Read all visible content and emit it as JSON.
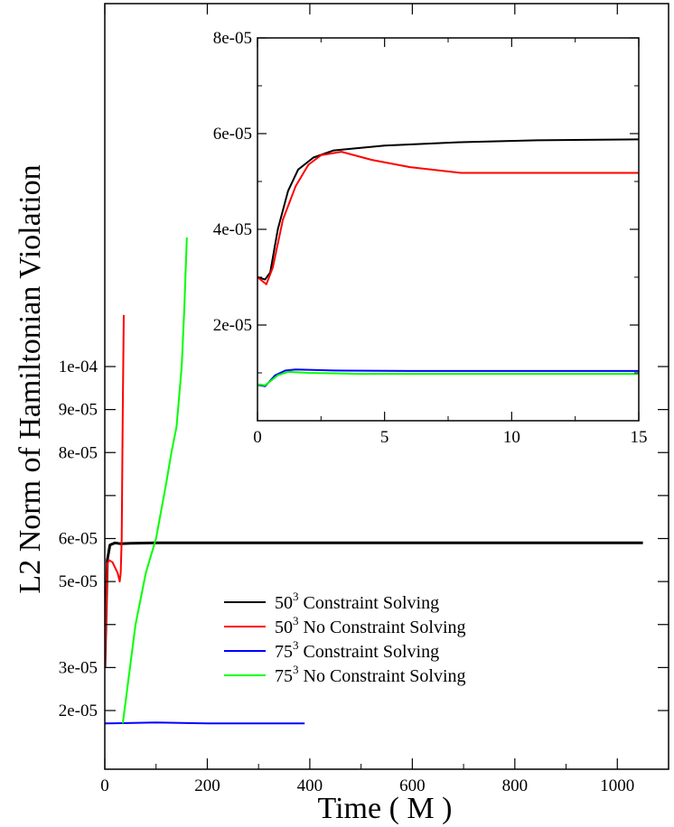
{
  "chart_data": [
    {
      "type": "line",
      "xlabel": "Time ( M )",
      "ylabel": "L2 Norm of Hamiltonian Violation",
      "xlim": [
        0,
        1100
      ],
      "ylim": [
        1.5e-05,
        0.00013
      ],
      "xticks": [
        0,
        200,
        400,
        600,
        800,
        1000
      ],
      "xtick_labels": [
        "0",
        "200",
        "400",
        "600",
        "800",
        "1000"
      ],
      "yticks": [
        2e-05,
        3e-05,
        5e-05,
        6e-05,
        8e-05,
        9e-05,
        0.0001
      ],
      "ytick_labels": [
        "2e-05",
        "3e-05",
        "5e-05",
        "6e-05",
        "8e-05",
        "9e-05",
        "1e-04"
      ],
      "legend_position": "lower-center",
      "series": [
        {
          "name": "50^3 Constraint Solving",
          "label_base": "50",
          "label_exp": "3",
          "label_rest": " Constraint Solving",
          "color": "#000000",
          "points": [
            [
              0,
              3e-05
            ],
            [
              5,
              5.5e-05
            ],
            [
              10,
              5.85e-05
            ],
            [
              20,
              5.9e-05
            ],
            [
              30,
              5.88e-05
            ],
            [
              50,
              5.89e-05
            ],
            [
              100,
              5.9e-05
            ],
            [
              500,
              5.9e-05
            ],
            [
              1000,
              5.9e-05
            ],
            [
              1050,
              5.9e-05
            ]
          ]
        },
        {
          "name": "50^3 No Constraint Solving",
          "label_base": "50",
          "label_exp": "3",
          "label_rest": " No Constraint Solving",
          "color": "#ff0000",
          "points": [
            [
              0,
              3e-05
            ],
            [
              5,
              5.4e-05
            ],
            [
              8,
              5.5e-05
            ],
            [
              15,
              5.45e-05
            ],
            [
              25,
              5.2e-05
            ],
            [
              29,
              5e-05
            ],
            [
              31,
              5.2e-05
            ],
            [
              33,
              6e-05
            ],
            [
              35,
              9e-05
            ],
            [
              37,
              0.000112
            ]
          ]
        },
        {
          "name": "75^3 Constraint Solving",
          "label_base": "75",
          "label_exp": "3",
          "label_rest": " Constraint Solving",
          "color": "#0000ff",
          "points": [
            [
              0,
              1.7e-05
            ],
            [
              100,
              1.72e-05
            ],
            [
              200,
              1.7e-05
            ],
            [
              300,
              1.7e-05
            ],
            [
              390,
              1.7e-05
            ]
          ]
        },
        {
          "name": "75^3 No Constraint Solving",
          "label_base": "75",
          "label_exp": "3",
          "label_rest": " No Constraint Solving",
          "color": "#00ff00",
          "points": [
            [
              35,
              1.7e-05
            ],
            [
              60,
              4e-05
            ],
            [
              80,
              5.2e-05
            ],
            [
              100,
              6e-05
            ],
            [
              120,
              7.3e-05
            ],
            [
              130,
              8e-05
            ],
            [
              140,
              8.6e-05
            ],
            [
              145,
              9.3e-05
            ],
            [
              150,
              0.0001
            ],
            [
              155,
              0.000113
            ],
            [
              160,
              0.00013
            ]
          ]
        }
      ]
    },
    {
      "type": "line",
      "subtitle": "inset",
      "xlim": [
        0,
        15
      ],
      "ylim": [
        0,
        8e-05
      ],
      "xticks": [
        0,
        5,
        10,
        15
      ],
      "xtick_labels": [
        "0",
        "5",
        "10",
        "15"
      ],
      "yticks": [
        2e-05,
        4e-05,
        6e-05,
        8e-05
      ],
      "ytick_labels": [
        "2e-05",
        "4e-05",
        "6e-05",
        "8e-05"
      ],
      "series": [
        {
          "color": "#000000",
          "points": [
            [
              0,
              3e-05
            ],
            [
              0.3,
              2.95e-05
            ],
            [
              0.5,
              3.1e-05
            ],
            [
              0.8,
              4e-05
            ],
            [
              1.2,
              4.8e-05
            ],
            [
              1.6,
              5.25e-05
            ],
            [
              2.2,
              5.5e-05
            ],
            [
              3,
              5.65e-05
            ],
            [
              5,
              5.75e-05
            ],
            [
              8,
              5.82e-05
            ],
            [
              11,
              5.86e-05
            ],
            [
              15,
              5.88e-05
            ]
          ]
        },
        {
          "color": "#ff0000",
          "points": [
            [
              0,
              3e-05
            ],
            [
              0.35,
              2.85e-05
            ],
            [
              0.6,
              3.2e-05
            ],
            [
              1,
              4.2e-05
            ],
            [
              1.5,
              4.9e-05
            ],
            [
              2,
              5.35e-05
            ],
            [
              2.5,
              5.55e-05
            ],
            [
              3.3,
              5.62e-05
            ],
            [
              4.5,
              5.45e-05
            ],
            [
              6,
              5.3e-05
            ],
            [
              8,
              5.18e-05
            ],
            [
              10,
              5.18e-05
            ],
            [
              12,
              5.18e-05
            ],
            [
              15,
              5.18e-05
            ]
          ]
        },
        {
          "color": "#0000ff",
          "points": [
            [
              0,
              7.5e-06
            ],
            [
              0.3,
              7.2e-06
            ],
            [
              0.7,
              9.5e-06
            ],
            [
              1.1,
              1.05e-05
            ],
            [
              1.5,
              1.07e-05
            ],
            [
              3,
              1.05e-05
            ],
            [
              6,
              1.04e-05
            ],
            [
              10,
              1.04e-05
            ],
            [
              15,
              1.04e-05
            ]
          ]
        },
        {
          "color": "#00ff00",
          "points": [
            [
              0,
              7.6e-06
            ],
            [
              0.3,
              7.4e-06
            ],
            [
              0.8,
              9.5e-06
            ],
            [
              1.2,
              1.02e-05
            ],
            [
              2,
              1e-05
            ],
            [
              4,
              9.8e-06
            ],
            [
              8,
              9.8e-06
            ],
            [
              15,
              9.8e-06
            ]
          ]
        }
      ]
    }
  ]
}
